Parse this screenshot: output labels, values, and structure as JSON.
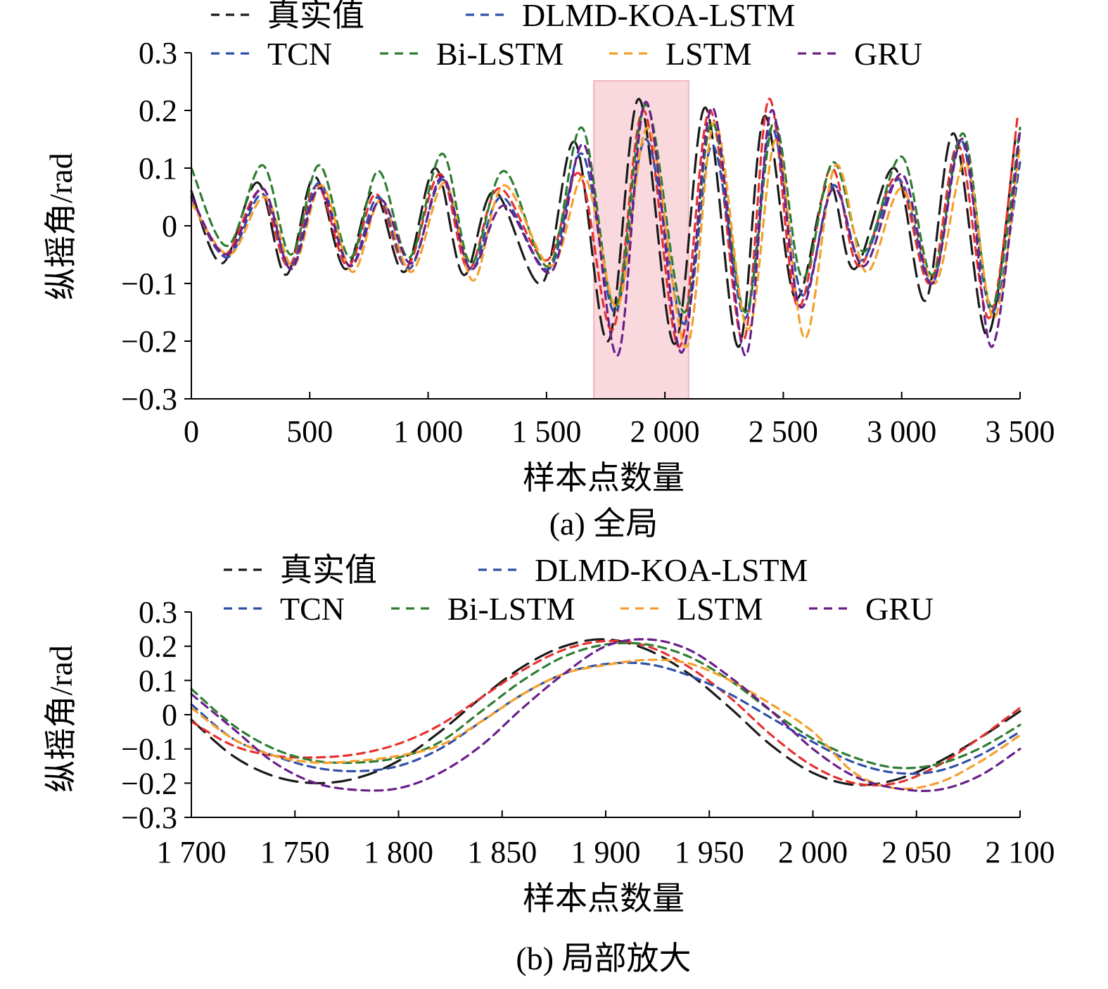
{
  "legend": [
    {
      "name": "真实值",
      "color": "#1a1a1a",
      "dash": "26 12"
    },
    {
      "name": "DLMD-KOA-LSTM",
      "color": "#e8312f",
      "dash": "11 8"
    },
    {
      "name": "TCN",
      "color": "#2f4fa8",
      "dash": "11 8"
    },
    {
      "name": "Bi-LSTM",
      "color": "#2e7d32",
      "dash": "11 8"
    },
    {
      "name": "LSTM",
      "color": "#f4a02a",
      "dash": "11 8"
    },
    {
      "name": "GRU",
      "color": "#6a1f8a",
      "dash": "11 8"
    }
  ],
  "legend_legend_colors_note": "DLMD-KOA-LSTM legend swatch rendered blue in original",
  "highlight_color": "#f9d9de",
  "chart_data": [
    {
      "type": "line",
      "caption": "(a) 全局",
      "xlabel": "样本点数量",
      "ylabel": "纵摇角/rad",
      "xlim": [
        0,
        3500
      ],
      "ylim": [
        -0.3,
        0.3
      ],
      "xticks": [
        0,
        500,
        1000,
        1500,
        2000,
        2500,
        3000,
        3500
      ],
      "xtick_labels": [
        "0",
        "500",
        "1 000",
        "1 500",
        "2 000",
        "2 500",
        "3 000",
        "3 500"
      ],
      "yticks": [
        -0.3,
        -0.2,
        -0.1,
        0,
        0.1,
        0.2,
        0.3
      ],
      "ytick_labels": [
        "−0.3",
        "−0.2",
        "−0.1",
        "0",
        "0.1",
        "0.2",
        "0.3"
      ],
      "highlight_range": [
        1700,
        2100
      ],
      "series": [
        {
          "name": "真实值",
          "x": [
            0,
            130,
            280,
            400,
            520,
            650,
            770,
            900,
            1030,
            1150,
            1280,
            1480,
            1620,
            1760,
            1890,
            2040,
            2170,
            2310,
            2420,
            2550,
            2690,
            2800,
            2970,
            3100,
            3220,
            3360,
            3480
          ],
          "y": [
            0.06,
            -0.065,
            0.075,
            -0.085,
            0.085,
            -0.075,
            0.06,
            -0.08,
            0.1,
            -0.085,
            0.06,
            -0.1,
            0.145,
            -0.2,
            0.22,
            -0.205,
            0.205,
            -0.21,
            0.19,
            -0.125,
            0.075,
            -0.075,
            0.1,
            -0.13,
            0.16,
            -0.19,
            0.15
          ]
        },
        {
          "name": "DLMD-KOA-LSTM",
          "x": [
            0,
            140,
            290,
            410,
            530,
            660,
            780,
            910,
            1050,
            1170,
            1300,
            1500,
            1640,
            1780,
            1910,
            2060,
            2190,
            2330,
            2440,
            2560,
            2700,
            2820,
            2980,
            3120,
            3240,
            3370,
            3490
          ],
          "y": [
            0.05,
            -0.05,
            0.06,
            -0.07,
            0.07,
            -0.07,
            0.055,
            -0.07,
            0.09,
            -0.075,
            0.065,
            -0.06,
            0.09,
            -0.18,
            0.2,
            -0.21,
            0.2,
            -0.2,
            0.22,
            -0.14,
            0.1,
            -0.07,
            0.085,
            -0.1,
            0.14,
            -0.16,
            0.19
          ]
        },
        {
          "name": "TCN",
          "x": [
            0,
            150,
            300,
            420,
            540,
            670,
            790,
            920,
            1060,
            1180,
            1310,
            1510,
            1650,
            1790,
            1920,
            2080,
            2200,
            2340,
            2450,
            2580,
            2710,
            2830,
            2990,
            3130,
            3250,
            3380,
            3500
          ],
          "y": [
            0.05,
            -0.055,
            0.055,
            -0.07,
            0.075,
            -0.07,
            0.05,
            -0.075,
            0.08,
            -0.075,
            0.05,
            -0.075,
            0.125,
            -0.15,
            0.15,
            -0.17,
            0.14,
            -0.16,
            0.17,
            -0.12,
            0.07,
            -0.06,
            0.08,
            -0.1,
            0.15,
            -0.15,
            0.11
          ]
        },
        {
          "name": "Bi-LSTM",
          "x": [
            0,
            150,
            300,
            420,
            540,
            670,
            790,
            920,
            1060,
            1180,
            1320,
            1510,
            1650,
            1790,
            1920,
            2080,
            2200,
            2340,
            2460,
            2580,
            2710,
            2840,
            3000,
            3130,
            3260,
            3380,
            3500
          ],
          "y": [
            0.1,
            -0.035,
            0.105,
            -0.05,
            0.105,
            -0.055,
            0.095,
            -0.055,
            0.125,
            -0.065,
            0.095,
            -0.07,
            0.17,
            -0.14,
            0.21,
            -0.15,
            0.18,
            -0.15,
            0.18,
            -0.09,
            0.11,
            -0.045,
            0.12,
            -0.085,
            0.16,
            -0.14,
            0.17
          ]
        },
        {
          "name": "LSTM",
          "x": [
            0,
            160,
            310,
            430,
            550,
            680,
            800,
            930,
            1070,
            1190,
            1320,
            1520,
            1660,
            1800,
            1930,
            2090,
            2210,
            2350,
            2470,
            2590,
            2720,
            2850,
            3000,
            3140,
            3270,
            3390,
            3500
          ],
          "y": [
            0.04,
            -0.05,
            0.05,
            -0.07,
            0.07,
            -0.08,
            0.045,
            -0.08,
            0.075,
            -0.095,
            0.07,
            -0.07,
            0.085,
            -0.14,
            0.17,
            -0.21,
            0.18,
            -0.18,
            0.15,
            -0.195,
            0.105,
            -0.08,
            0.065,
            -0.1,
            0.11,
            -0.16,
            0.14
          ]
        },
        {
          "name": "GRU",
          "x": [
            0,
            150,
            300,
            420,
            540,
            670,
            800,
            930,
            1060,
            1180,
            1320,
            1520,
            1660,
            1800,
            1920,
            2070,
            2200,
            2340,
            2450,
            2570,
            2710,
            2840,
            3000,
            3130,
            3260,
            3380,
            3500
          ],
          "y": [
            0.05,
            -0.05,
            0.065,
            -0.075,
            0.065,
            -0.07,
            0.045,
            -0.065,
            0.085,
            -0.075,
            0.035,
            -0.08,
            0.14,
            -0.225,
            0.215,
            -0.22,
            0.205,
            -0.225,
            0.2,
            -0.14,
            0.065,
            -0.07,
            0.09,
            -0.1,
            0.15,
            -0.21,
            0.165
          ]
        }
      ]
    },
    {
      "type": "line",
      "caption": "(b) 局部放大",
      "xlabel": "样本点数量",
      "ylabel": "纵摇角/rad",
      "xlim": [
        1700,
        2100
      ],
      "ylim": [
        -0.3,
        0.3
      ],
      "xticks": [
        1700,
        1750,
        1800,
        1850,
        1900,
        1950,
        2000,
        2050,
        2100
      ],
      "xtick_labels": [
        "1 700",
        "1 750",
        "1 800",
        "1 850",
        "1 900",
        "1 950",
        "2 000",
        "2 050",
        "2 100"
      ],
      "yticks": [
        -0.3,
        -0.2,
        -0.1,
        0,
        0.1,
        0.2,
        0.3
      ],
      "ytick_labels": [
        "−0.3",
        "−0.2",
        "−0.1",
        "0",
        "0.1",
        "0.2",
        "0.3"
      ],
      "series": [
        {
          "name": "真实值",
          "x": [
            1700,
            1720,
            1740,
            1760,
            1780,
            1800,
            1820,
            1840,
            1860,
            1880,
            1900,
            1920,
            1940,
            1960,
            1980,
            2000,
            2020,
            2040,
            2060,
            2080,
            2100
          ],
          "y": [
            -0.015,
            -0.12,
            -0.18,
            -0.2,
            -0.185,
            -0.135,
            -0.05,
            0.05,
            0.14,
            0.2,
            0.22,
            0.19,
            0.12,
            0.02,
            -0.09,
            -0.17,
            -0.205,
            -0.19,
            -0.14,
            -0.07,
            0.01
          ]
        },
        {
          "name": "DLMD-KOA-LSTM",
          "x": [
            1700,
            1720,
            1740,
            1760,
            1780,
            1800,
            1820,
            1840,
            1860,
            1880,
            1900,
            1920,
            1940,
            1960,
            1980,
            2000,
            2020,
            2040,
            2060,
            2080,
            2100
          ],
          "y": [
            -0.02,
            -0.09,
            -0.12,
            -0.125,
            -0.115,
            -0.085,
            -0.03,
            0.05,
            0.13,
            0.19,
            0.215,
            0.2,
            0.14,
            0.05,
            -0.06,
            -0.15,
            -0.2,
            -0.2,
            -0.15,
            -0.07,
            0.02
          ]
        },
        {
          "name": "TCN",
          "x": [
            1700,
            1720,
            1740,
            1760,
            1780,
            1800,
            1820,
            1840,
            1860,
            1880,
            1900,
            1920,
            1940,
            1960,
            1980,
            2000,
            2020,
            2040,
            2060,
            2080,
            2100
          ],
          "y": [
            0.03,
            -0.07,
            -0.12,
            -0.155,
            -0.165,
            -0.15,
            -0.1,
            -0.02,
            0.06,
            0.12,
            0.148,
            0.148,
            0.115,
            0.06,
            -0.01,
            -0.08,
            -0.14,
            -0.17,
            -0.165,
            -0.12,
            -0.05
          ]
        },
        {
          "name": "Bi-LSTM",
          "x": [
            1700,
            1720,
            1740,
            1760,
            1780,
            1800,
            1820,
            1840,
            1860,
            1880,
            1900,
            1920,
            1940,
            1960,
            1980,
            2000,
            2020,
            2040,
            2060,
            2080,
            2100
          ],
          "y": [
            0.075,
            -0.03,
            -0.1,
            -0.135,
            -0.14,
            -0.125,
            -0.08,
            0.01,
            0.1,
            0.17,
            0.205,
            0.205,
            0.17,
            0.1,
            0.01,
            -0.07,
            -0.125,
            -0.155,
            -0.145,
            -0.1,
            -0.03
          ]
        },
        {
          "name": "LSTM",
          "x": [
            1700,
            1720,
            1740,
            1760,
            1780,
            1800,
            1820,
            1840,
            1860,
            1880,
            1900,
            1920,
            1940,
            1960,
            1980,
            2000,
            2020,
            2040,
            2060,
            2080,
            2100
          ],
          "y": [
            0.02,
            -0.07,
            -0.12,
            -0.14,
            -0.135,
            -0.12,
            -0.09,
            -0.02,
            0.06,
            0.12,
            0.145,
            0.16,
            0.15,
            0.1,
            0.03,
            -0.05,
            -0.17,
            -0.215,
            -0.2,
            -0.14,
            -0.06
          ]
        },
        {
          "name": "GRU",
          "x": [
            1700,
            1720,
            1740,
            1760,
            1780,
            1800,
            1820,
            1840,
            1860,
            1880,
            1900,
            1920,
            1940,
            1960,
            1980,
            2000,
            2020,
            2040,
            2060,
            2080,
            2100
          ],
          "y": [
            0.06,
            -0.04,
            -0.14,
            -0.2,
            -0.22,
            -0.215,
            -0.17,
            -0.09,
            0.02,
            0.12,
            0.2,
            0.22,
            0.19,
            0.11,
            0.01,
            -0.1,
            -0.18,
            -0.215,
            -0.22,
            -0.18,
            -0.1
          ]
        }
      ]
    }
  ]
}
